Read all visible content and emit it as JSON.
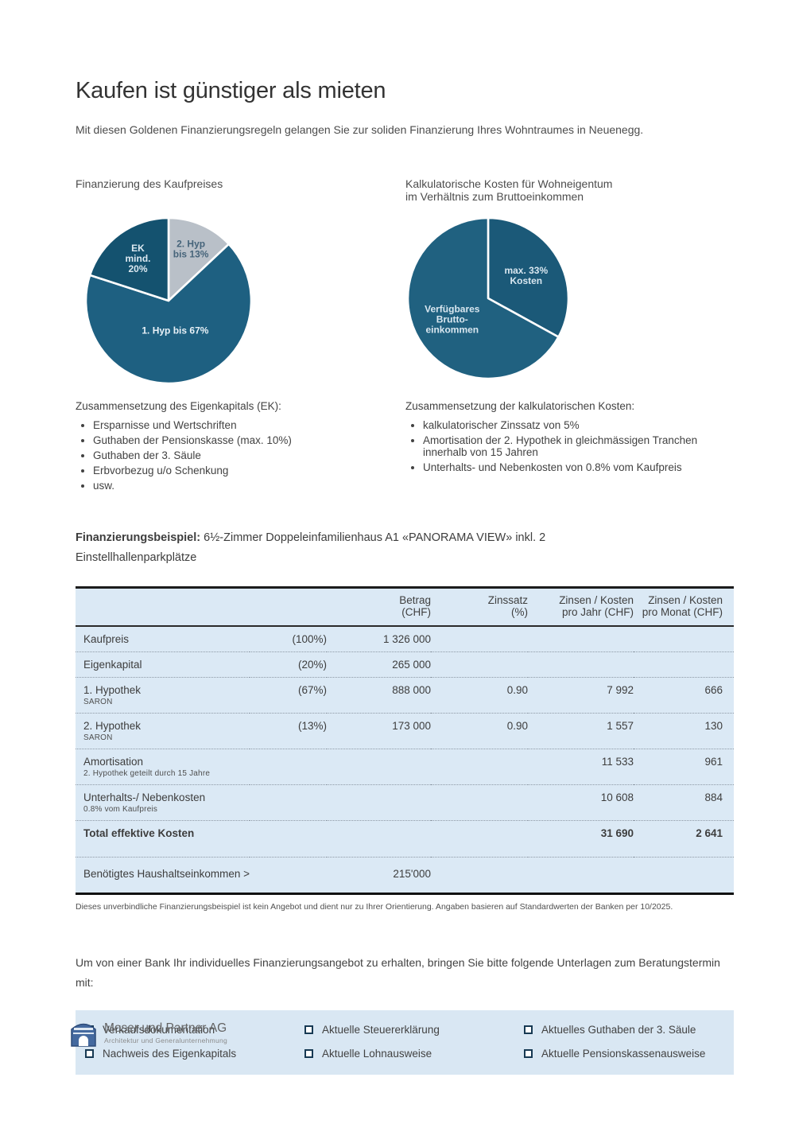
{
  "header": {
    "title": "Kaufen ist günstiger als mieten",
    "subtitle": "Mit diesen Goldenen Finanzierungsregeln gelangen Sie zur soliden Finanzierung Ihres Wohntraumes in Neuenegg."
  },
  "colors": {
    "pie_teal": "#1e6081",
    "pie_dark_teal": "#175677",
    "pie_gray": "#b9c0c8",
    "table_bg": "#dbe9f5",
    "panel_bg": "#d9e7f3",
    "checkbox": "#173953"
  },
  "chart_data": [
    {
      "type": "pie",
      "title": "Finanzierung des Kaufpreises",
      "size": 214,
      "legend_position": "inside",
      "slices": [
        {
          "label": "2. Hyp\nbis 13%",
          "value": 13,
          "color": "#b9c0c8",
          "text_color": "#46647a",
          "label_r": 0.68
        },
        {
          "label": "1. Hyp bis 67%",
          "value": 67,
          "color": "#1e6081",
          "text_color": "#e8f1f7",
          "label_r": 0.37
        },
        {
          "label": "EK\nmind.\n20%",
          "value": 20,
          "color": "#14526f",
          "text_color": "#dce9f1",
          "label_r": 0.63
        }
      ]
    },
    {
      "type": "pie",
      "title": "Kalkulatorische Kosten für Wohneigentum\nim Verhältnis zum Bruttoeinkommen",
      "size": 208,
      "legend_position": "inside",
      "slices": [
        {
          "label": "max. 33%\nKosten",
          "value": 33,
          "color": "#1b5978",
          "text_color": "#d9e7f0",
          "label_r": 0.55
        },
        {
          "label": "Verfügbares\nBrutto-\neinkommen",
          "value": 67,
          "color": "#206180",
          "text_color": "#d9e7f0",
          "label_r": 0.52
        }
      ]
    }
  ],
  "lists": [
    {
      "heading": "Zusammensetzung des Eigenkapitals (EK):",
      "items": [
        "Ersparnisse und Wertschriften",
        "Guthaben der Pensionskasse (max. 10%)",
        "Guthaben der 3. Säule",
        "Erbvorbezug u/o Schenkung",
        "usw."
      ]
    },
    {
      "heading": "Zusammensetzung der kalkulatorischen Kosten:",
      "items": [
        "kalkulatorischer Zinssatz von 5%",
        "Amortisation der 2. Hypothek in gleichmässigen Tranchen innerhalb von 15 Jahren",
        "Unterhalts- und Nebenkosten von 0.8% vom Kaufpreis"
      ]
    }
  ],
  "example": {
    "label": "Finanzierungsbeispiel:",
    "text": " 6½-Zimmer Doppeleinfamilienhaus A1 «PANORAMA VIEW» inkl. 2 Einstellhallenparkplätze"
  },
  "table": {
    "headers": [
      "",
      "",
      "Betrag\n(CHF)",
      "Zinssatz\n(%)",
      "Zinsen / Kosten\npro Jahr (CHF)",
      "Zinsen / Kosten\npro Monat (CHF)"
    ],
    "rows": [
      {
        "label": "Kaufpreis",
        "pct": "(100%)",
        "betrag": "1 326 000",
        "zins": "",
        "jahr": "",
        "monat": ""
      },
      {
        "label": "Eigenkapital",
        "pct": "(20%)",
        "betrag": "265 000",
        "zins": "",
        "jahr": "",
        "monat": ""
      },
      {
        "label": "1. Hypothek",
        "sublabel": "SARON",
        "pct": "(67%)",
        "betrag": "888 000",
        "zins": "0.90",
        "jahr": "7 992",
        "monat": "666"
      },
      {
        "label": "2. Hypothek",
        "sublabel": "SARON",
        "pct": "(13%)",
        "betrag": "173 000",
        "zins": "0.90",
        "jahr": "1 557",
        "monat": "130"
      },
      {
        "label": "Amortisation",
        "sublabel": "2. Hypothek geteilt durch 15 Jahre",
        "pct": "",
        "betrag": "",
        "zins": "",
        "jahr": "11 533",
        "monat": "961"
      },
      {
        "label": "Unterhalts-/ Nebenkosten",
        "sublabel": "0.8% vom Kaufpreis",
        "pct": "",
        "betrag": "",
        "zins": "",
        "jahr": "10 608",
        "monat": "884"
      },
      {
        "label": "Total effektive Kosten",
        "bold": true,
        "pct": "",
        "betrag": "",
        "zins": "",
        "jahr": "31 690",
        "monat": "2 641"
      },
      {
        "label": "Benötigtes Haushaltseinkommen >",
        "gap_before": true,
        "pct": "",
        "betrag": "215'000",
        "zins": "",
        "jahr": "",
        "monat": ""
      }
    ],
    "footnote": "Dieses unverbindliche Finanzierungsbeispiel ist kein Angebot und dient nur zu Ihrer Orientierung. Angaben basieren auf Standardwerten der Banken per 10/2025."
  },
  "cta": {
    "text": "Um von einer Bank Ihr individuelles Finanzierungsangebot zu erhalten, bringen Sie bitte folgende Unterlagen zum Beratungstermin mit:"
  },
  "checklist": {
    "items": [
      "Verkaufsdokumentation",
      "Aktuelle Steuererklärung",
      "Aktuelles Guthaben der 3. Säule",
      "Nachweis des Eigenkapitals",
      "Aktuelle Lohnausweise",
      "Aktuelle Pensionskassenausweise"
    ]
  },
  "footer": {
    "company": "Moser und Partner AG",
    "tagline": "Architektur und Generalunternehmung"
  }
}
